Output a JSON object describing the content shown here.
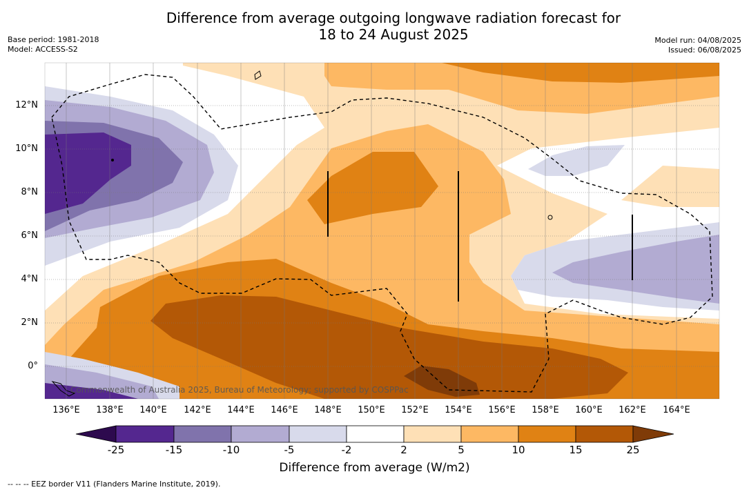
{
  "title_line1": "Difference from average outgoing longwave radiation forecast for",
  "title_line2": "18 to 24 August 2025",
  "base_period": "Base period: 1981-2018",
  "model": "Model: ACCESS-S2",
  "model_run": "Model run: 04/08/2025",
  "issued": "Issued: 06/08/2025",
  "lat_ticks": [
    "12°N",
    "10°N",
    "8°N",
    "6°N",
    "4°N",
    "2°N",
    "0°"
  ],
  "lon_ticks": [
    "136°E",
    "138°E",
    "140°E",
    "142°E",
    "144°E",
    "146°E",
    "148°E",
    "150°E",
    "152°E",
    "154°E",
    "156°E",
    "158°E",
    "160°E",
    "162°E",
    "164°E"
  ],
  "credit": "Commonwealth of Australia 2025, Bureau of Meteorology; supported by COSPPac",
  "colorbar": {
    "title": "Difference from average (W/m2)",
    "labels": [
      "-25",
      "-15",
      "-10",
      "-5",
      "-2",
      "2",
      "5",
      "10",
      "15",
      "25"
    ],
    "colors": {
      "below_-25": "#2d0a4e",
      "-25_-15": "#54278f",
      "-15_-10": "#8073ac",
      "-10_-5": "#b2abd2",
      "-5_-2": "#d8daeb",
      "-2_2": "#ffffff",
      "2_5": "#fee0b6",
      "5_10": "#fdb863",
      "10_15": "#e08214",
      "15_25": "#b35806",
      "above_25": "#7f3b08"
    }
  },
  "footnote": "--  --  -- EEZ border V11 (Flanders Marine Institute, 2019).",
  "map_extent": {
    "lon": [
      135,
      166
    ],
    "lat": [
      -1.5,
      14
    ]
  }
}
